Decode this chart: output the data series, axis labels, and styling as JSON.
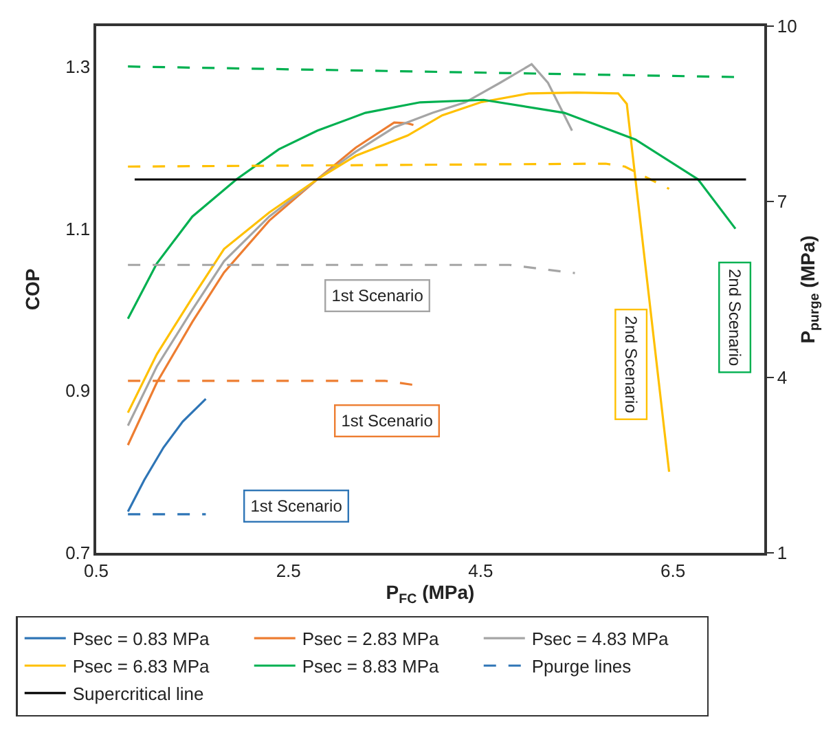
{
  "chart_data": {
    "type": "line",
    "xlabel": "P$_{FC}$ (MPa)",
    "ylabel": "COP",
    "y2label": "P$_{purge}$ (MPa)",
    "xlim": [
      0.5,
      7.45
    ],
    "xticks": [
      0.5,
      2.5,
      4.5,
      6.5
    ],
    "ylim": [
      0.7,
      1.35
    ],
    "yticks": [
      0.7,
      0.9,
      1.1,
      1.3
    ],
    "y2lim": [
      1,
      10
    ],
    "y2ticks": [
      1,
      4,
      7,
      10
    ],
    "legend": "bottom",
    "marker": "none",
    "series": [
      {
        "name": "Psec = 0.83 MPa",
        "color": "#2e75b6",
        "x": [
          0.83,
          1.0,
          1.2,
          1.4,
          1.64
        ],
        "values": [
          0.751,
          0.79,
          0.83,
          0.862,
          0.89
        ]
      },
      {
        "name": "Psec = 2.83 MPa",
        "color": "#ed7d31",
        "x": [
          0.83,
          1.13,
          1.5,
          1.83,
          2.3,
          2.8,
          3.2,
          3.6,
          3.74,
          3.8
        ],
        "values": [
          0.833,
          0.91,
          0.985,
          1.046,
          1.11,
          1.161,
          1.2,
          1.231,
          1.23,
          1.228
        ]
      },
      {
        "name": "Psec = 4.83 MPa",
        "color": "#a5a5a5",
        "x": [
          0.83,
          1.13,
          1.5,
          1.83,
          2.3,
          2.8,
          3.2,
          3.6,
          4.0,
          4.34,
          4.7,
          5.03,
          5.2,
          5.45
        ],
        "values": [
          0.857,
          0.93,
          1.0,
          1.06,
          1.115,
          1.161,
          1.195,
          1.225,
          1.243,
          1.256,
          1.28,
          1.303,
          1.28,
          1.221
        ]
      },
      {
        "name": "Psec = 6.83 MPa",
        "color": "#ffc000",
        "x": [
          0.83,
          1.13,
          1.5,
          1.83,
          2.3,
          2.8,
          3.2,
          3.74,
          4.1,
          4.5,
          5.0,
          5.5,
          5.93,
          6.02,
          6.46
        ],
        "values": [
          0.873,
          0.945,
          1.015,
          1.075,
          1.12,
          1.161,
          1.19,
          1.215,
          1.24,
          1.256,
          1.267,
          1.268,
          1.267,
          1.254,
          0.8
        ]
      },
      {
        "name": "Psec = 8.83 MPa",
        "color": "#00b050",
        "x": [
          0.83,
          1.13,
          1.5,
          1.96,
          2.4,
          2.8,
          3.3,
          3.87,
          4.53,
          5.37,
          6.11,
          6.76,
          7.15
        ],
        "values": [
          0.989,
          1.057,
          1.115,
          1.161,
          1.198,
          1.221,
          1.243,
          1.256,
          1.259,
          1.243,
          1.21,
          1.161,
          1.1
        ]
      },
      {
        "name": "Ppurge lines",
        "color": "#2e75b6",
        "line_style": "dashed",
        "axis": "y2",
        "x": [
          0.83,
          1.64
        ],
        "values": [
          1.66,
          1.66
        ]
      },
      {
        "color": "#ed7d31",
        "line_style": "dashed",
        "axis": "y2",
        "x": [
          0.83,
          3.5,
          3.8
        ],
        "values": [
          3.94,
          3.94,
          3.87
        ]
      },
      {
        "color": "#a5a5a5",
        "line_style": "dashed",
        "axis": "y2",
        "x": [
          0.83,
          4.8,
          5.48
        ],
        "values": [
          5.92,
          5.92,
          5.78
        ]
      },
      {
        "color": "#ffc000",
        "line_style": "dashed",
        "axis": "y2",
        "x": [
          0.83,
          5.8,
          6.0,
          6.46
        ],
        "values": [
          7.6,
          7.65,
          7.6,
          7.22
        ]
      },
      {
        "color": "#00b050",
        "line_style": "dashed",
        "axis": "y2",
        "x": [
          0.83,
          7.15
        ],
        "values": [
          9.31,
          9.13
        ]
      },
      {
        "name": "Supercritical line",
        "color": "#000000",
        "axis": "y2",
        "x": [
          0.9,
          7.26
        ],
        "values": [
          7.38,
          7.38
        ]
      }
    ],
    "annotations": [
      "1st Scenario",
      "1st Scenario",
      "1st Scenario",
      "2nd Scenario",
      "2nd Scenario"
    ]
  }
}
